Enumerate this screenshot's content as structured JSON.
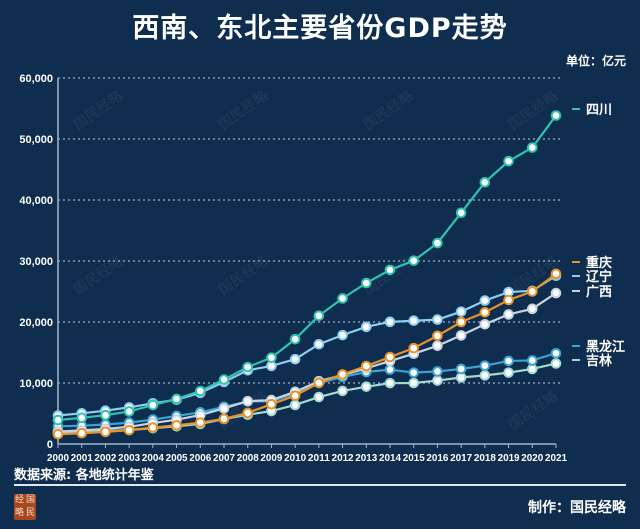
{
  "chart_data": {
    "type": "line",
    "title": "西南、东北主要省份GDP走势",
    "unit_label": "单位：亿元",
    "x": [
      2000,
      2001,
      2002,
      2003,
      2004,
      2005,
      2006,
      2007,
      2008,
      2009,
      2010,
      2011,
      2012,
      2013,
      2014,
      2015,
      2016,
      2017,
      2018,
      2019,
      2020,
      2021
    ],
    "yticks": [
      "0",
      "10,000",
      "20,000",
      "30,000",
      "40,000",
      "50,000",
      "60,000"
    ],
    "ylim": [
      0,
      60000
    ],
    "grid": "horizontal dotted",
    "legend": "right, labels at line ends",
    "series": [
      {
        "name": "四川",
        "color": "#2ec4b0",
        "values": [
          3928,
          4293,
          4725,
          5333,
          6380,
          7385,
          8690,
          10562,
          12601,
          14151,
          17185,
          21027,
          23873,
          26392,
          28537,
          30053,
          32935,
          37905,
          42902,
          46364,
          48599,
          53851
        ]
      },
      {
        "name": "重庆",
        "color": "#e8922a",
        "values": [
          1603,
          1766,
          1991,
          2273,
          2693,
          3070,
          3492,
          4123,
          5097,
          6530,
          7926,
          10011,
          11410,
          12783,
          14263,
          15717,
          17741,
          20000,
          21588,
          23606,
          25003,
          27894
        ]
      },
      {
        "name": "辽宁",
        "color": "#8ecdf2",
        "values": [
          4669,
          5033,
          5458,
          6003,
          6672,
          7261,
          8390,
          10164,
          12082,
          12800,
          13900,
          16354,
          17849,
          19208,
          20026,
          20210,
          20393,
          21693,
          23511,
          24909,
          25115,
          27584
        ]
      },
      {
        "name": "广西",
        "color": "#c7d3e0",
        "values": [
          2050,
          2231,
          2455,
          2821,
          3433,
          3984,
          4746,
          5823,
          7021,
          7200,
          8552,
          10300,
          11300,
          12400,
          13600,
          14800,
          16100,
          17800,
          19628,
          21237,
          22157,
          24741
        ]
      },
      {
        "name": "黑龙江",
        "color": "#3aa4d4",
        "values": [
          2900,
          3000,
          3200,
          3500,
          4000,
          4600,
          5200,
          6100,
          7000,
          7000,
          8300,
          10000,
          11000,
          11800,
          12200,
          11700,
          11900,
          12300,
          12846,
          13613,
          13698,
          14879
        ]
      },
      {
        "name": "吉林",
        "color": "#a3d9cf",
        "values": [
          1800,
          1900,
          2100,
          2300,
          2600,
          2900,
          3300,
          4100,
          4800,
          5400,
          6400,
          7700,
          8700,
          9400,
          9970,
          10000,
          10400,
          10900,
          11250,
          11700,
          12300,
          13200
        ]
      }
    ]
  },
  "footer": {
    "source": "数据来源: 各地统计年鉴",
    "credit": "制作：国民经略",
    "logo_text": [
      "经",
      "国",
      "略",
      "民"
    ]
  },
  "watermark": "国民经略"
}
